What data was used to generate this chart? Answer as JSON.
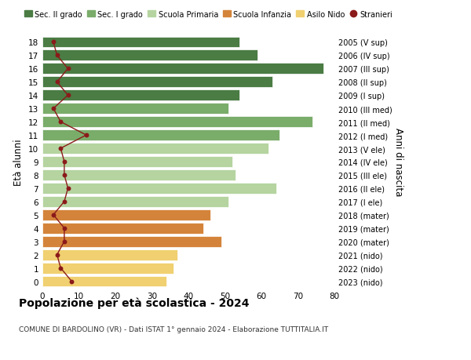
{
  "ages": [
    18,
    17,
    16,
    15,
    14,
    13,
    12,
    11,
    10,
    9,
    8,
    7,
    6,
    5,
    4,
    3,
    2,
    1,
    0
  ],
  "anni_nascita": [
    "2005 (V sup)",
    "2006 (IV sup)",
    "2007 (III sup)",
    "2008 (II sup)",
    "2009 (I sup)",
    "2010 (III med)",
    "2011 (II med)",
    "2012 (I med)",
    "2013 (V ele)",
    "2014 (IV ele)",
    "2015 (III ele)",
    "2016 (II ele)",
    "2017 (I ele)",
    "2018 (mater)",
    "2019 (mater)",
    "2020 (mater)",
    "2021 (nido)",
    "2022 (nido)",
    "2023 (nido)"
  ],
  "bar_values": [
    54,
    59,
    77,
    63,
    54,
    51,
    74,
    65,
    62,
    52,
    53,
    64,
    51,
    46,
    44,
    49,
    37,
    36,
    34
  ],
  "bar_colors": [
    "#4a7c44",
    "#4a7c44",
    "#4a7c44",
    "#4a7c44",
    "#4a7c44",
    "#7aac6a",
    "#7aac6a",
    "#7aac6a",
    "#b5d4a0",
    "#b5d4a0",
    "#b5d4a0",
    "#b5d4a0",
    "#b5d4a0",
    "#d4843a",
    "#d4843a",
    "#d4843a",
    "#f0d070",
    "#f0d070",
    "#f0d070"
  ],
  "stranieri_values": [
    3,
    4,
    7,
    4,
    7,
    3,
    5,
    12,
    5,
    6,
    6,
    7,
    6,
    3,
    6,
    6,
    4,
    5,
    8
  ],
  "legend_labels": [
    "Sec. II grado",
    "Sec. I grado",
    "Scuola Primaria",
    "Scuola Infanzia",
    "Asilo Nido",
    "Stranieri"
  ],
  "legend_colors": [
    "#4a7c44",
    "#7aac6a",
    "#b5d4a0",
    "#d4843a",
    "#f0d070",
    "#8b1a1a"
  ],
  "title": "Popolazione per età scolastica - 2024",
  "subtitle": "COMUNE DI BARDOLINO (VR) - Dati ISTAT 1° gennaio 2024 - Elaborazione TUTTITALIA.IT",
  "ylabel": "Età alunni",
  "right_label": "Anni di nascita",
  "xlim": [
    0,
    80
  ],
  "xticks": [
    0,
    10,
    20,
    30,
    40,
    50,
    60,
    70,
    80
  ],
  "bg_color": "#ffffff",
  "bar_height": 0.82,
  "stranieri_line_color": "#8b1a1a",
  "stranieri_dot_color": "#8b1a1a"
}
